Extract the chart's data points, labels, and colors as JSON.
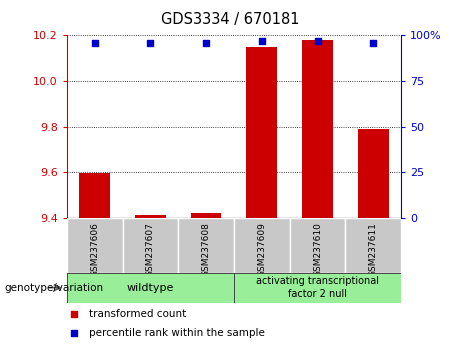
{
  "title": "GDS3334 / 670181",
  "categories": [
    "GSM237606",
    "GSM237607",
    "GSM237608",
    "GSM237609",
    "GSM237610",
    "GSM237611"
  ],
  "red_values": [
    9.595,
    9.41,
    9.42,
    10.15,
    10.18,
    9.79
  ],
  "blue_values": [
    96,
    96,
    96,
    97,
    97,
    96
  ],
  "ylim_left": [
    9.4,
    10.2
  ],
  "ylim_right": [
    0,
    100
  ],
  "yticks_left": [
    9.4,
    9.6,
    9.8,
    10.0,
    10.2
  ],
  "yticks_right": [
    0,
    25,
    50,
    75,
    100
  ],
  "left_axis_color": "#cc0000",
  "right_axis_color": "#0000cc",
  "bar_color": "#cc0000",
  "dot_color": "#0000cc",
  "background_plot": "#ffffff",
  "tick_bg_color": "#c8c8c8",
  "group1_label": "wildtype",
  "group1_indices": [
    0,
    1,
    2
  ],
  "group2_label": "activating transcriptional\nfactor 2 null",
  "group2_indices": [
    3,
    4,
    5
  ],
  "group_bg_color": "#99ee99",
  "legend_red": "transformed count",
  "legend_blue": "percentile rank within the sample",
  "genotype_label": "genotype/variation"
}
